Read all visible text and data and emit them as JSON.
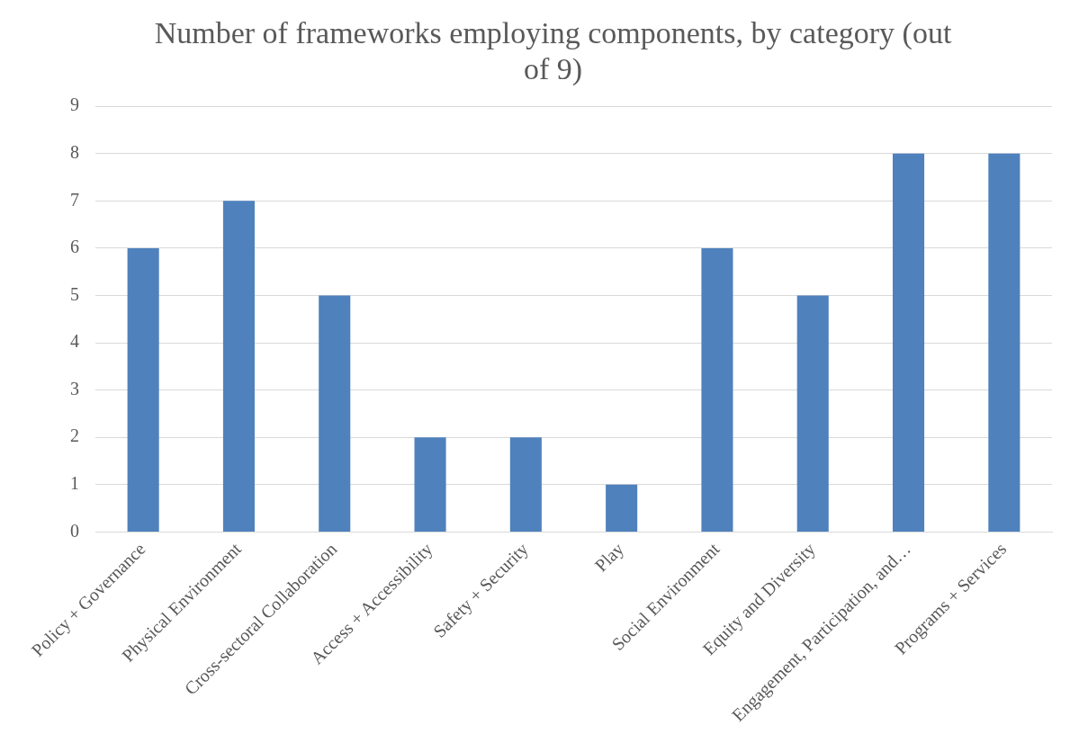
{
  "chart_data": {
    "type": "bar",
    "title": "Number of frameworks employing components, by category (out of 9)",
    "categories": [
      "Policy + Governance",
      "Physical Environment",
      "Cross-sectoral Collaboration",
      "Access + Accessibility",
      "Safety + Security",
      "Play",
      "Social Environment",
      "Equity and Diversity",
      "Engagement, Participation, and…",
      "Programs + Services"
    ],
    "values": [
      6,
      7,
      5,
      2,
      2,
      1,
      6,
      5,
      8,
      8
    ],
    "color": "#4f81bd",
    "ylim": [
      0,
      9
    ],
    "yticks": [
      0,
      1,
      2,
      3,
      4,
      5,
      6,
      7,
      8,
      9
    ],
    "grid": "y",
    "legend": false
  }
}
